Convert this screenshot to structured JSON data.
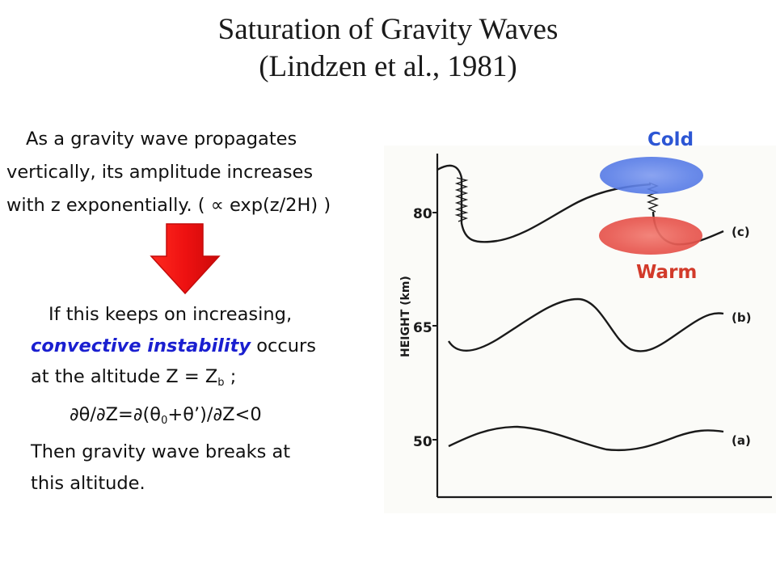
{
  "title": {
    "line1": "Saturation of Gravity Waves",
    "line2": "(Lindzen et al., 1981)"
  },
  "intro": {
    "line1": "As a gravity wave propagates",
    "line2": "vertically, its amplitude increases",
    "line3": "with z exponentially. ( ∝ exp(z/2H) )"
  },
  "conclusion": {
    "line1": "If this keeps on increasing,",
    "highlight": "convective instability",
    "line2_rest": " occurs",
    "line3_pre": "at the altitude Z = Z",
    "line3_sub": "b",
    "line3_post": " ;",
    "line4_pre": "∂θ/∂Z=∂(θ",
    "line4_sub": "0",
    "line4_post": "+θ’)/∂Z<0",
    "line5": "Then gravity wave breaks at",
    "line6": "this altitude."
  },
  "figure": {
    "ylabel": "HEIGHT (km)",
    "ticks": [
      "80",
      "65",
      "50"
    ],
    "curves": [
      "(c)",
      "(b)",
      "(a)"
    ],
    "cold_label": "Cold",
    "warm_label": "Warm"
  },
  "colors": {
    "arrow": "#ee1111",
    "highlight": "#1a1fd0",
    "cold": "#2c56d4",
    "warm": "#d23a2a"
  }
}
